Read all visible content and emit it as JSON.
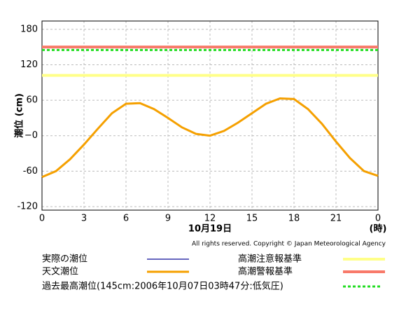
{
  "chart_data": {
    "type": "line",
    "y_label": "潮位 (cm)",
    "x_label": "10月19日",
    "x_unit": "(時)",
    "copyright": "All rights reserved. Copyright © Japan Meteorological Agency",
    "x": [
      0,
      1,
      2,
      3,
      4,
      5,
      6,
      7,
      8,
      9,
      10,
      11,
      12,
      13,
      14,
      15,
      16,
      17,
      18,
      19,
      20,
      21,
      22,
      23,
      24
    ],
    "series": [
      {
        "name": "実際の潮位",
        "color": "#3333aa",
        "values": [
          null,
          null,
          null,
          null,
          null,
          null,
          null,
          null,
          null,
          null,
          null,
          null,
          null,
          null,
          null,
          null,
          null,
          null,
          null,
          null,
          null,
          null,
          null,
          null,
          null
        ]
      },
      {
        "name": "天文潮位",
        "color": "#f5a000",
        "values": [
          -70,
          -60,
          -40,
          -15,
          12,
          38,
          54,
          55,
          45,
          30,
          14,
          3,
          0,
          8,
          22,
          38,
          54,
          63,
          62,
          45,
          20,
          -10,
          -38,
          -60,
          -68
        ]
      }
    ],
    "reference_lines": [
      {
        "name": "高潮注意報基準",
        "value": 102,
        "color": "#ffff88",
        "style": "solid"
      },
      {
        "name": "高潮警報基準",
        "value": 150,
        "color": "#f87a6a",
        "style": "solid"
      },
      {
        "name": "過去最高潮位(145cm:2006年10月07日03時47分:低気圧)",
        "value": 145,
        "color": "#22dd22",
        "style": "dotted"
      }
    ],
    "xlim": [
      0,
      24
    ],
    "xticks": [
      0,
      3,
      6,
      9,
      12,
      15,
      18,
      21,
      {
        "value": 24,
        "label": "0"
      }
    ],
    "ylim": [
      -126,
      194
    ],
    "yticks": [
      180,
      120,
      60,
      {
        "value": 0,
        "label": "−0"
      },
      -60,
      -120
    ],
    "grid": true
  }
}
